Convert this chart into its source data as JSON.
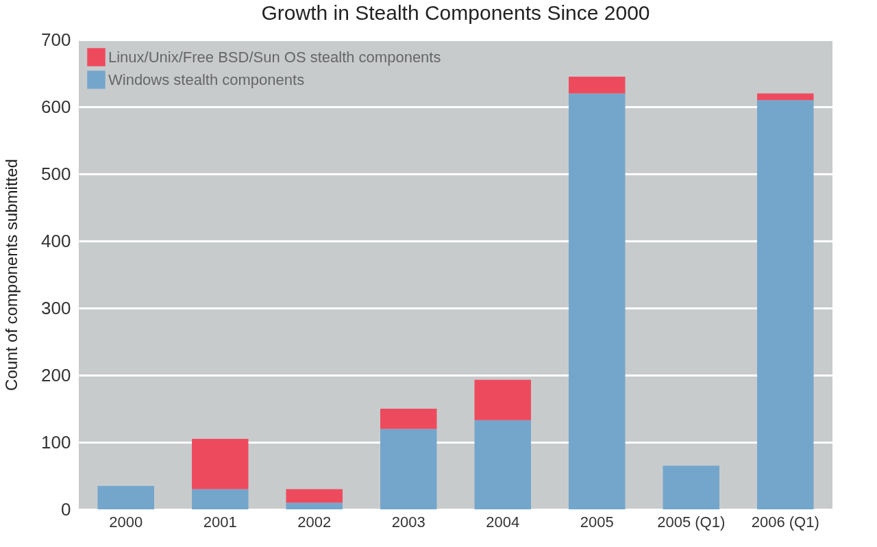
{
  "chart_data": {
    "type": "bar",
    "title": "Growth in Stealth Components Since 2000",
    "ylabel": "Count of components submitted",
    "categories": [
      "2000",
      "2001",
      "2002",
      "2003",
      "2004",
      "2005",
      "2005 (Q1)",
      "2006 (Q1)"
    ],
    "series": [
      {
        "name": "Windows stealth components",
        "color": "#74a6cc",
        "values": [
          35,
          30,
          10,
          120,
          133,
          620,
          65,
          610
        ]
      },
      {
        "name": "Linux/Unix/Free BSD/Sun OS stealth components",
        "color": "#ee4a5e",
        "values": [
          0,
          75,
          20,
          30,
          60,
          25,
          0,
          10
        ]
      }
    ],
    "stacked": true,
    "ylim": [
      0,
      700
    ],
    "yticks": [
      0,
      100,
      200,
      300,
      400,
      500,
      600,
      700
    ],
    "grid": "y",
    "legend": "top left"
  }
}
